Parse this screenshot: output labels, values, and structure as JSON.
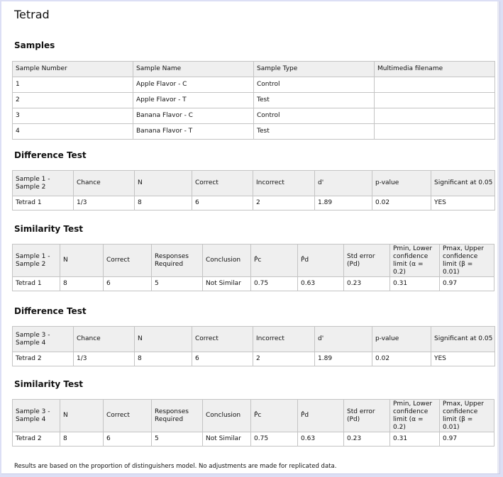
{
  "title": "Tetrad",
  "samples": {
    "heading": "Samples",
    "headers": [
      "Sample Number",
      "Sample Name",
      "Sample Type",
      "Multimedia filename"
    ],
    "rows": [
      [
        "1",
        "Apple Flavor - C",
        "Control",
        ""
      ],
      [
        "2",
        "Apple Flavor - T",
        "Test",
        ""
      ],
      [
        "3",
        "Banana Flavor - C",
        "Control",
        ""
      ],
      [
        "4",
        "Banana Flavor - T",
        "Test",
        ""
      ]
    ]
  },
  "difference1": {
    "heading": "Difference Test",
    "headers": [
      "Sample 1 - Sample 2",
      "Chance",
      "N",
      "Correct",
      "Incorrect",
      "d'",
      "p-value",
      "Significant at 0.05"
    ],
    "row": [
      "Tetrad 1",
      "1/3",
      "8",
      "6",
      "2",
      "1.89",
      "0.02",
      "YES"
    ]
  },
  "similarity1": {
    "heading": "Similarity Test",
    "headers": [
      "Sample 1 - Sample 2",
      "N",
      "Correct",
      "Responses Required",
      "Conclusion",
      "P̂c",
      "P̂d",
      "Std error (Pd)",
      "Pmin, Lower confidence limit (α = 0.2)",
      "Pmax, Upper confidence limit (β = 0.01)"
    ],
    "row": [
      "Tetrad 1",
      "8",
      "6",
      "5",
      "Not Similar",
      "0.75",
      "0.63",
      "0.23",
      "0.31",
      "0.97"
    ]
  },
  "difference2": {
    "heading": "Difference Test",
    "headers": [
      "Sample 3 - Sample 4",
      "Chance",
      "N",
      "Correct",
      "Incorrect",
      "d'",
      "p-value",
      "Significant at 0.05"
    ],
    "row": [
      "Tetrad 2",
      "1/3",
      "8",
      "6",
      "2",
      "1.89",
      "0.02",
      "YES"
    ]
  },
  "similarity2": {
    "heading": "Similarity Test",
    "headers": [
      "Sample 3 - Sample 4",
      "N",
      "Correct",
      "Responses Required",
      "Conclusion",
      "P̂c",
      "P̂d",
      "Std error (Pd)",
      "Pmin, Lower confidence limit (α = 0.2)",
      "Pmax, Upper confidence limit (β = 0.01)"
    ],
    "row": [
      "Tetrad 2",
      "8",
      "6",
      "5",
      "Not Similar",
      "0.75",
      "0.63",
      "0.23",
      "0.31",
      "0.97"
    ]
  },
  "footnote": "Results are based on the proportion of distinguishers model. No adjustments are made for replicated data."
}
